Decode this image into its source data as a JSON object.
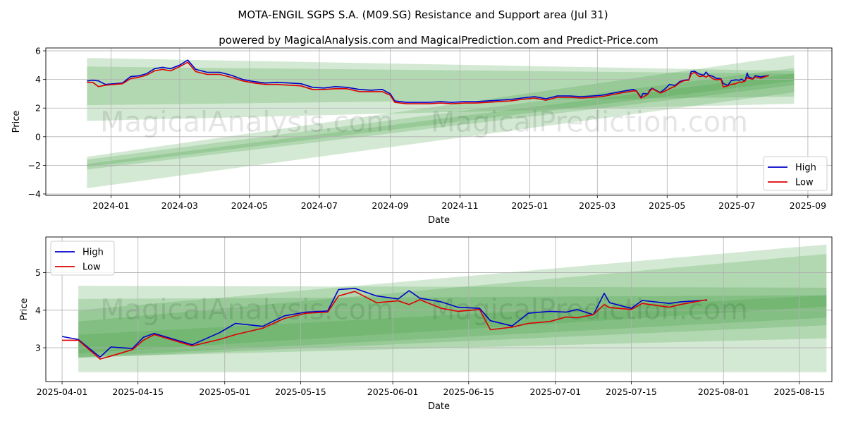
{
  "title": "MOTA-ENGIL SGPS S.A. (M09.SG) Resistance and Support area (Jul 31)",
  "subtitle": "powered by MagicalAnalysis.com and MagicalPrediction.com and Predict-Price.com",
  "watermarks": [
    "MagicalAnalysis.com",
    "MagicalPrediction.com"
  ],
  "colors": {
    "high": "#0000cc",
    "low": "#dd0000",
    "band": "#3c9a3c"
  },
  "chart_data": [
    {
      "type": "line",
      "xlabel": "Date",
      "ylabel": "Price",
      "x_ticks": [
        "2024-01",
        "2024-03",
        "2024-05",
        "2024-07",
        "2024-09",
        "2024-11",
        "2025-01",
        "2025-03",
        "2025-05",
        "2025-07",
        "2025-09"
      ],
      "y_ticks": [
        "−4",
        "−2",
        "0",
        "2",
        "4",
        "6"
      ],
      "xlim": [
        "2023-11-05",
        "2025-09-22"
      ],
      "ylim": [
        -4.1,
        6.2
      ],
      "grid": true,
      "legend": "bottom-right",
      "series": [
        {
          "name": "High",
          "points": [
            [
              "2023-12-11",
              3.9
            ],
            [
              "2023-12-16",
              3.95
            ],
            [
              "2023-12-21",
              3.9
            ],
            [
              "2023-12-27",
              3.65
            ],
            [
              "2024-01-04",
              3.7
            ],
            [
              "2024-01-11",
              3.75
            ],
            [
              "2024-01-18",
              4.2
            ],
            [
              "2024-01-25",
              4.25
            ],
            [
              "2024-02-01",
              4.4
            ],
            [
              "2024-02-08",
              4.75
            ],
            [
              "2024-02-15",
              4.85
            ],
            [
              "2024-02-22",
              4.75
            ],
            [
              "2024-03-01",
              5.0
            ],
            [
              "2024-03-08",
              5.35
            ],
            [
              "2024-03-15",
              4.7
            ],
            [
              "2024-03-25",
              4.5
            ],
            [
              "2024-04-05",
              4.5
            ],
            [
              "2024-04-15",
              4.3
            ],
            [
              "2024-04-25",
              4.0
            ],
            [
              "2024-05-05",
              3.85
            ],
            [
              "2024-05-15",
              3.75
            ],
            [
              "2024-05-25",
              3.8
            ],
            [
              "2024-06-05",
              3.75
            ],
            [
              "2024-06-15",
              3.7
            ],
            [
              "2024-06-25",
              3.45
            ],
            [
              "2024-07-05",
              3.4
            ],
            [
              "2024-07-15",
              3.5
            ],
            [
              "2024-07-25",
              3.45
            ],
            [
              "2024-08-05",
              3.3
            ],
            [
              "2024-08-15",
              3.25
            ],
            [
              "2024-08-25",
              3.3
            ],
            [
              "2024-09-01",
              3.0
            ],
            [
              "2024-09-05",
              2.5
            ],
            [
              "2024-09-15",
              2.4
            ],
            [
              "2024-09-25",
              2.4
            ],
            [
              "2024-10-05",
              2.4
            ],
            [
              "2024-10-15",
              2.45
            ],
            [
              "2024-10-25",
              2.4
            ],
            [
              "2024-11-05",
              2.45
            ],
            [
              "2024-11-15",
              2.45
            ],
            [
              "2024-11-25",
              2.5
            ],
            [
              "2024-12-05",
              2.55
            ],
            [
              "2024-12-15",
              2.6
            ],
            [
              "2024-12-25",
              2.7
            ],
            [
              "2025-01-05",
              2.8
            ],
            [
              "2025-01-15",
              2.65
            ],
            [
              "2025-01-25",
              2.85
            ],
            [
              "2025-02-05",
              2.85
            ],
            [
              "2025-02-15",
              2.8
            ],
            [
              "2025-02-25",
              2.85
            ],
            [
              "2025-03-05",
              2.9
            ],
            [
              "2025-03-15",
              3.05
            ],
            [
              "2025-03-25",
              3.2
            ],
            [
              "2025-04-01",
              3.3
            ],
            [
              "2025-04-04",
              3.22
            ],
            [
              "2025-04-08",
              2.75
            ],
            [
              "2025-04-10",
              3.02
            ],
            [
              "2025-04-14",
              2.98
            ],
            [
              "2025-04-16",
              3.28
            ],
            [
              "2025-04-18",
              3.38
            ],
            [
              "2025-04-25",
              3.08
            ],
            [
              "2025-04-30",
              3.4
            ],
            [
              "2025-05-03",
              3.65
            ],
            [
              "2025-05-08",
              3.57
            ],
            [
              "2025-05-12",
              3.85
            ],
            [
              "2025-05-16",
              3.95
            ],
            [
              "2025-05-20",
              3.98
            ],
            [
              "2025-05-22",
              4.55
            ],
            [
              "2025-05-25",
              4.58
            ],
            [
              "2025-05-29",
              4.38
            ],
            [
              "2025-06-02",
              4.3
            ],
            [
              "2025-06-04",
              4.52
            ],
            [
              "2025-06-06",
              4.32
            ],
            [
              "2025-06-10",
              4.22
            ],
            [
              "2025-06-13",
              4.08
            ],
            [
              "2025-06-17",
              4.05
            ],
            [
              "2025-06-19",
              3.72
            ],
            [
              "2025-06-23",
              3.58
            ],
            [
              "2025-06-26",
              3.92
            ],
            [
              "2025-06-30",
              3.97
            ],
            [
              "2025-07-03",
              3.95
            ],
            [
              "2025-07-05",
              4.02
            ],
            [
              "2025-07-08",
              3.88
            ],
            [
              "2025-07-10",
              4.45
            ],
            [
              "2025-07-11",
              4.2
            ],
            [
              "2025-07-15",
              4.05
            ],
            [
              "2025-07-17",
              4.26
            ],
            [
              "2025-07-22",
              4.18
            ],
            [
              "2025-07-24",
              4.22
            ],
            [
              "2025-07-29",
              4.27
            ]
          ]
        },
        {
          "name": "Low",
          "points": [
            [
              "2023-12-11",
              3.8
            ],
            [
              "2023-12-16",
              3.8
            ],
            [
              "2023-12-21",
              3.5
            ],
            [
              "2023-12-27",
              3.6
            ],
            [
              "2024-01-04",
              3.65
            ],
            [
              "2024-01-11",
              3.7
            ],
            [
              "2024-01-18",
              4.05
            ],
            [
              "2024-01-25",
              4.15
            ],
            [
              "2024-02-01",
              4.3
            ],
            [
              "2024-02-08",
              4.6
            ],
            [
              "2024-02-15",
              4.7
            ],
            [
              "2024-02-22",
              4.6
            ],
            [
              "2024-03-01",
              4.9
            ],
            [
              "2024-03-08",
              5.2
            ],
            [
              "2024-03-15",
              4.55
            ],
            [
              "2024-03-25",
              4.35
            ],
            [
              "2024-04-05",
              4.35
            ],
            [
              "2024-04-15",
              4.15
            ],
            [
              "2024-04-25",
              3.9
            ],
            [
              "2024-05-05",
              3.75
            ],
            [
              "2024-05-15",
              3.65
            ],
            [
              "2024-05-25",
              3.65
            ],
            [
              "2024-06-05",
              3.6
            ],
            [
              "2024-06-15",
              3.55
            ],
            [
              "2024-06-25",
              3.3
            ],
            [
              "2024-07-05",
              3.3
            ],
            [
              "2024-07-15",
              3.35
            ],
            [
              "2024-07-25",
              3.35
            ],
            [
              "2024-08-05",
              3.15
            ],
            [
              "2024-08-15",
              3.15
            ],
            [
              "2024-08-25",
              3.15
            ],
            [
              "2024-09-01",
              2.9
            ],
            [
              "2024-09-05",
              2.4
            ],
            [
              "2024-09-15",
              2.3
            ],
            [
              "2024-09-25",
              2.3
            ],
            [
              "2024-10-05",
              2.3
            ],
            [
              "2024-10-15",
              2.35
            ],
            [
              "2024-10-25",
              2.3
            ],
            [
              "2024-11-05",
              2.35
            ],
            [
              "2024-11-15",
              2.35
            ],
            [
              "2024-11-25",
              2.4
            ],
            [
              "2024-12-05",
              2.45
            ],
            [
              "2024-12-15",
              2.5
            ],
            [
              "2024-12-25",
              2.6
            ],
            [
              "2025-01-05",
              2.7
            ],
            [
              "2025-01-15",
              2.55
            ],
            [
              "2025-01-25",
              2.75
            ],
            [
              "2025-02-05",
              2.75
            ],
            [
              "2025-02-15",
              2.7
            ],
            [
              "2025-02-25",
              2.75
            ],
            [
              "2025-03-05",
              2.8
            ],
            [
              "2025-03-15",
              2.95
            ],
            [
              "2025-03-25",
              3.1
            ],
            [
              "2025-04-01",
              3.2
            ],
            [
              "2025-04-04",
              3.2
            ],
            [
              "2025-04-08",
              2.7
            ],
            [
              "2025-04-10",
              2.78
            ],
            [
              "2025-04-14",
              2.95
            ],
            [
              "2025-04-16",
              3.2
            ],
            [
              "2025-04-18",
              3.35
            ],
            [
              "2025-04-25",
              3.05
            ],
            [
              "2025-04-30",
              3.22
            ],
            [
              "2025-05-03",
              3.35
            ],
            [
              "2025-05-08",
              3.52
            ],
            [
              "2025-05-12",
              3.78
            ],
            [
              "2025-05-16",
              3.92
            ],
            [
              "2025-05-20",
              3.95
            ],
            [
              "2025-05-22",
              4.38
            ],
            [
              "2025-05-25",
              4.5
            ],
            [
              "2025-05-29",
              4.2
            ],
            [
              "2025-06-02",
              4.25
            ],
            [
              "2025-06-04",
              4.15
            ],
            [
              "2025-06-06",
              4.28
            ],
            [
              "2025-06-10",
              4.05
            ],
            [
              "2025-06-13",
              3.97
            ],
            [
              "2025-06-17",
              4.02
            ],
            [
              "2025-06-19",
              3.48
            ],
            [
              "2025-06-23",
              3.55
            ],
            [
              "2025-06-26",
              3.65
            ],
            [
              "2025-06-30",
              3.7
            ],
            [
              "2025-07-03",
              3.82
            ],
            [
              "2025-07-05",
              3.8
            ],
            [
              "2025-07-08",
              3.88
            ],
            [
              "2025-07-10",
              4.15
            ],
            [
              "2025-07-11",
              4.07
            ],
            [
              "2025-07-15",
              4.02
            ],
            [
              "2025-07-17",
              4.18
            ],
            [
              "2025-07-22",
              4.08
            ],
            [
              "2025-07-24",
              4.15
            ],
            [
              "2025-07-29",
              4.28
            ]
          ]
        }
      ],
      "bands": [
        {
          "start": [
            "2023-12-11",
            5.5,
            1.1
          ],
          "end": [
            "2025-08-20",
            4.6,
            2.3
          ]
        },
        {
          "start": [
            "2023-12-11",
            4.9,
            2.2
          ],
          "end": [
            "2025-08-20",
            4.4,
            2.8
          ]
        },
        {
          "start": [
            "2023-12-11",
            -1.4,
            -3.6
          ],
          "end": [
            "2025-08-20",
            5.7,
            3.1
          ]
        },
        {
          "start": [
            "2023-12-11",
            -1.6,
            -2.3
          ],
          "end": [
            "2025-08-20",
            4.8,
            3.6
          ]
        },
        {
          "start": [
            "2023-12-11",
            -1.9,
            -2.1
          ],
          "end": [
            "2025-08-20",
            4.4,
            3.9
          ]
        }
      ]
    },
    {
      "type": "line",
      "xlabel": "Date",
      "ylabel": "Price",
      "x_ticks": [
        "2025-04-01",
        "2025-04-15",
        "2025-05-01",
        "2025-05-15",
        "2025-06-01",
        "2025-06-15",
        "2025-07-01",
        "2025-07-15",
        "2025-08-01",
        "2025-08-15"
      ],
      "y_ticks": [
        "3",
        "4",
        "5"
      ],
      "xlim": [
        "2025-03-29",
        "2025-08-21"
      ],
      "ylim": [
        2.1,
        5.95
      ],
      "grid": true,
      "legend": "top-left",
      "series_ref": "same as first chart, from 2025-04-04",
      "bands": [
        {
          "start": [
            "2025-04-04",
            4.65,
            2.35
          ],
          "end": [
            "2025-08-20",
            4.6,
            2.35
          ]
        },
        {
          "start": [
            "2025-04-04",
            4.3,
            2.75
          ],
          "end": [
            "2025-08-20",
            4.4,
            3.25
          ]
        },
        {
          "start": [
            "2025-04-04",
            4.0,
            2.72
          ],
          "end": [
            "2025-08-20",
            5.75,
            3.6
          ]
        },
        {
          "start": [
            "2025-04-04",
            3.7,
            2.75
          ],
          "end": [
            "2025-08-20",
            5.5,
            3.8
          ]
        },
        {
          "start": [
            "2025-04-04",
            3.35,
            2.85
          ],
          "end": [
            "2025-08-20",
            4.4,
            4.1
          ]
        }
      ]
    }
  ]
}
